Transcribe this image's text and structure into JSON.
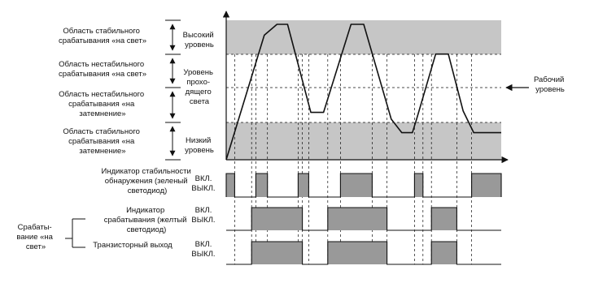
{
  "colors": {
    "stable_band": "#c6c6c6",
    "signal_fill": "#999999",
    "line": "#111111"
  },
  "zones": [
    {
      "lines": [
        "Область стабильного",
        "срабатывания «на свет»"
      ]
    },
    {
      "lines": [
        "Область нестабильного",
        "срабатывания «на свет»"
      ]
    },
    {
      "lines": [
        "Область нестабильного",
        "срабатывания «на",
        "затемнение»"
      ]
    },
    {
      "lines": [
        "Область стабильного",
        "срабатывания «на",
        "затемнение»"
      ]
    }
  ],
  "levels": {
    "high": [
      "Высокий",
      "уровень"
    ],
    "incident": [
      "Уровень",
      "прохо-",
      "дящего",
      "света"
    ],
    "low": [
      "Низкий",
      "уровень"
    ],
    "operating": [
      "Рабочий",
      "уровень"
    ]
  },
  "indicators": {
    "stability": [
      "Индикатор стабильности",
      "обнаружения (зеленый",
      "светодиод)"
    ],
    "operation": [
      "Индикатор",
      "срабатывания (желтый",
      "светодиод)"
    ],
    "transistor": [
      "Транзисторный выход"
    ],
    "light_on_mode": [
      "Срабаты-",
      "вание «на",
      "свет»"
    ],
    "on": "ВКЛ.",
    "off": "ВЫКЛ."
  },
  "chart_data": {
    "type": "line",
    "level_scale": {
      "low_threshold": 0.3,
      "operating_level": 0.57,
      "high_threshold": 0.74
    },
    "light_signal": [
      [
        0,
        0
      ],
      [
        1.8,
        0.92
      ],
      [
        2.4,
        1.0
      ],
      [
        2.9,
        1.0
      ],
      [
        4.0,
        0.35
      ],
      [
        4.6,
        0.35
      ],
      [
        5.9,
        1.0
      ],
      [
        6.5,
        1.0
      ],
      [
        7.8,
        0.3
      ],
      [
        8.3,
        0.2
      ],
      [
        8.8,
        0.2
      ],
      [
        9.0,
        0.3
      ],
      [
        9.9,
        0.78
      ],
      [
        10.5,
        0.78
      ],
      [
        11.2,
        0.36
      ],
      [
        11.7,
        0.2
      ],
      [
        13.0,
        0.2
      ]
    ],
    "stability_indicator_on": [
      [
        0,
        0.4
      ],
      [
        1.4,
        1.95
      ],
      [
        3.4,
        3.9
      ],
      [
        5.4,
        6.9
      ],
      [
        8.9,
        9.3
      ],
      [
        11.6,
        13.0
      ]
    ],
    "operation_indicator_on": [
      [
        1.2,
        3.6
      ],
      [
        4.8,
        7.6
      ],
      [
        9.7,
        10.9
      ]
    ],
    "transistor_output_on": [
      [
        1.2,
        3.6
      ],
      [
        4.8,
        7.6
      ],
      [
        9.7,
        10.9
      ]
    ]
  }
}
